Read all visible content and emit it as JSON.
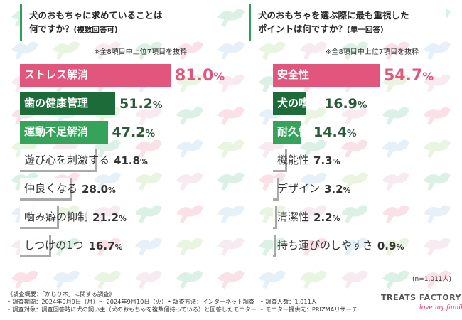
{
  "left_question": {
    "line1": "犬のおもちゃに求めていることは",
    "line2": "何ですか？",
    "line2_sub": "(複数回答可)",
    "note": "※全8項目中上位7項目を抜粋"
  },
  "right_question": {
    "line1": "犬のおもちゃを選ぶ際に最も重視した",
    "line2": "ポイントは何ですか？",
    "line2_sub": "(単一回答)",
    "note": "※全8項目中上位7項目を抜粋"
  },
  "sample_size": "(n=1,011人)",
  "colors": {
    "pink": "#e2567d",
    "dark_green": "#1e6b3a",
    "green": "#35a35a",
    "grey": "#a9a9a9",
    "accent_green": "#2f9e5a"
  },
  "chart_data": [
    {
      "type": "bar",
      "orientation": "horizontal",
      "title": "犬のおもちゃに求めていることは何ですか？(複数回答可)",
      "categories": [
        "ストレス解消",
        "歯の健康管理",
        "運動不足解消",
        "遊び心を刺激する",
        "仲良くなる",
        "噛み癖の抑制",
        "しつけの1つ"
      ],
      "values": [
        81.0,
        51.2,
        47.2,
        41.8,
        28.0,
        21.2,
        16.7
      ],
      "value_labels": [
        "81.0",
        "51.2",
        "47.2",
        "41.8",
        "28.0",
        "21.2",
        "16.7"
      ],
      "unit": "%",
      "bar_colors": [
        "pink",
        "dark_green",
        "green",
        "grey",
        "grey",
        "grey",
        "grey"
      ],
      "xlim": [
        0,
        81.0
      ]
    },
    {
      "type": "bar",
      "orientation": "horizontal",
      "title": "犬のおもちゃを選ぶ際に最も重視したポイントは何ですか？(単一回答)",
      "categories": [
        "安全性",
        "犬の嗜好",
        "耐久性",
        "機能性",
        "デザイン",
        "清潔性",
        "持ち運びのしやすさ"
      ],
      "values": [
        54.7,
        16.9,
        14.4,
        7.3,
        3.2,
        2.2,
        0.9
      ],
      "value_labels": [
        "54.7",
        "16.9",
        "14.4",
        "7.3",
        "3.2",
        "2.2",
        "0.9"
      ],
      "unit": "%",
      "bar_colors": [
        "pink",
        "dark_green",
        "green",
        "grey",
        "grey",
        "grey",
        "grey"
      ],
      "xlim": [
        0,
        54.7
      ]
    }
  ],
  "footer": {
    "overview": "《調査概要：「かじり木」に関する調査》",
    "period": "• 調査期間：2024年9月9日（月）～ 2024年9月10日（火）",
    "method": "• 調査方法：インターネット調査",
    "count": "• 調査人数：1,011人",
    "target": "• 調査対象：調査回答時に犬の飼い主（犬のおもちゃを複数個持っている）と回答したモニター",
    "provider": "• モニター提供元：PRIZMAリサーチ"
  },
  "brand": {
    "name": "TREATS FACTORY",
    "tagline": "love my family"
  }
}
